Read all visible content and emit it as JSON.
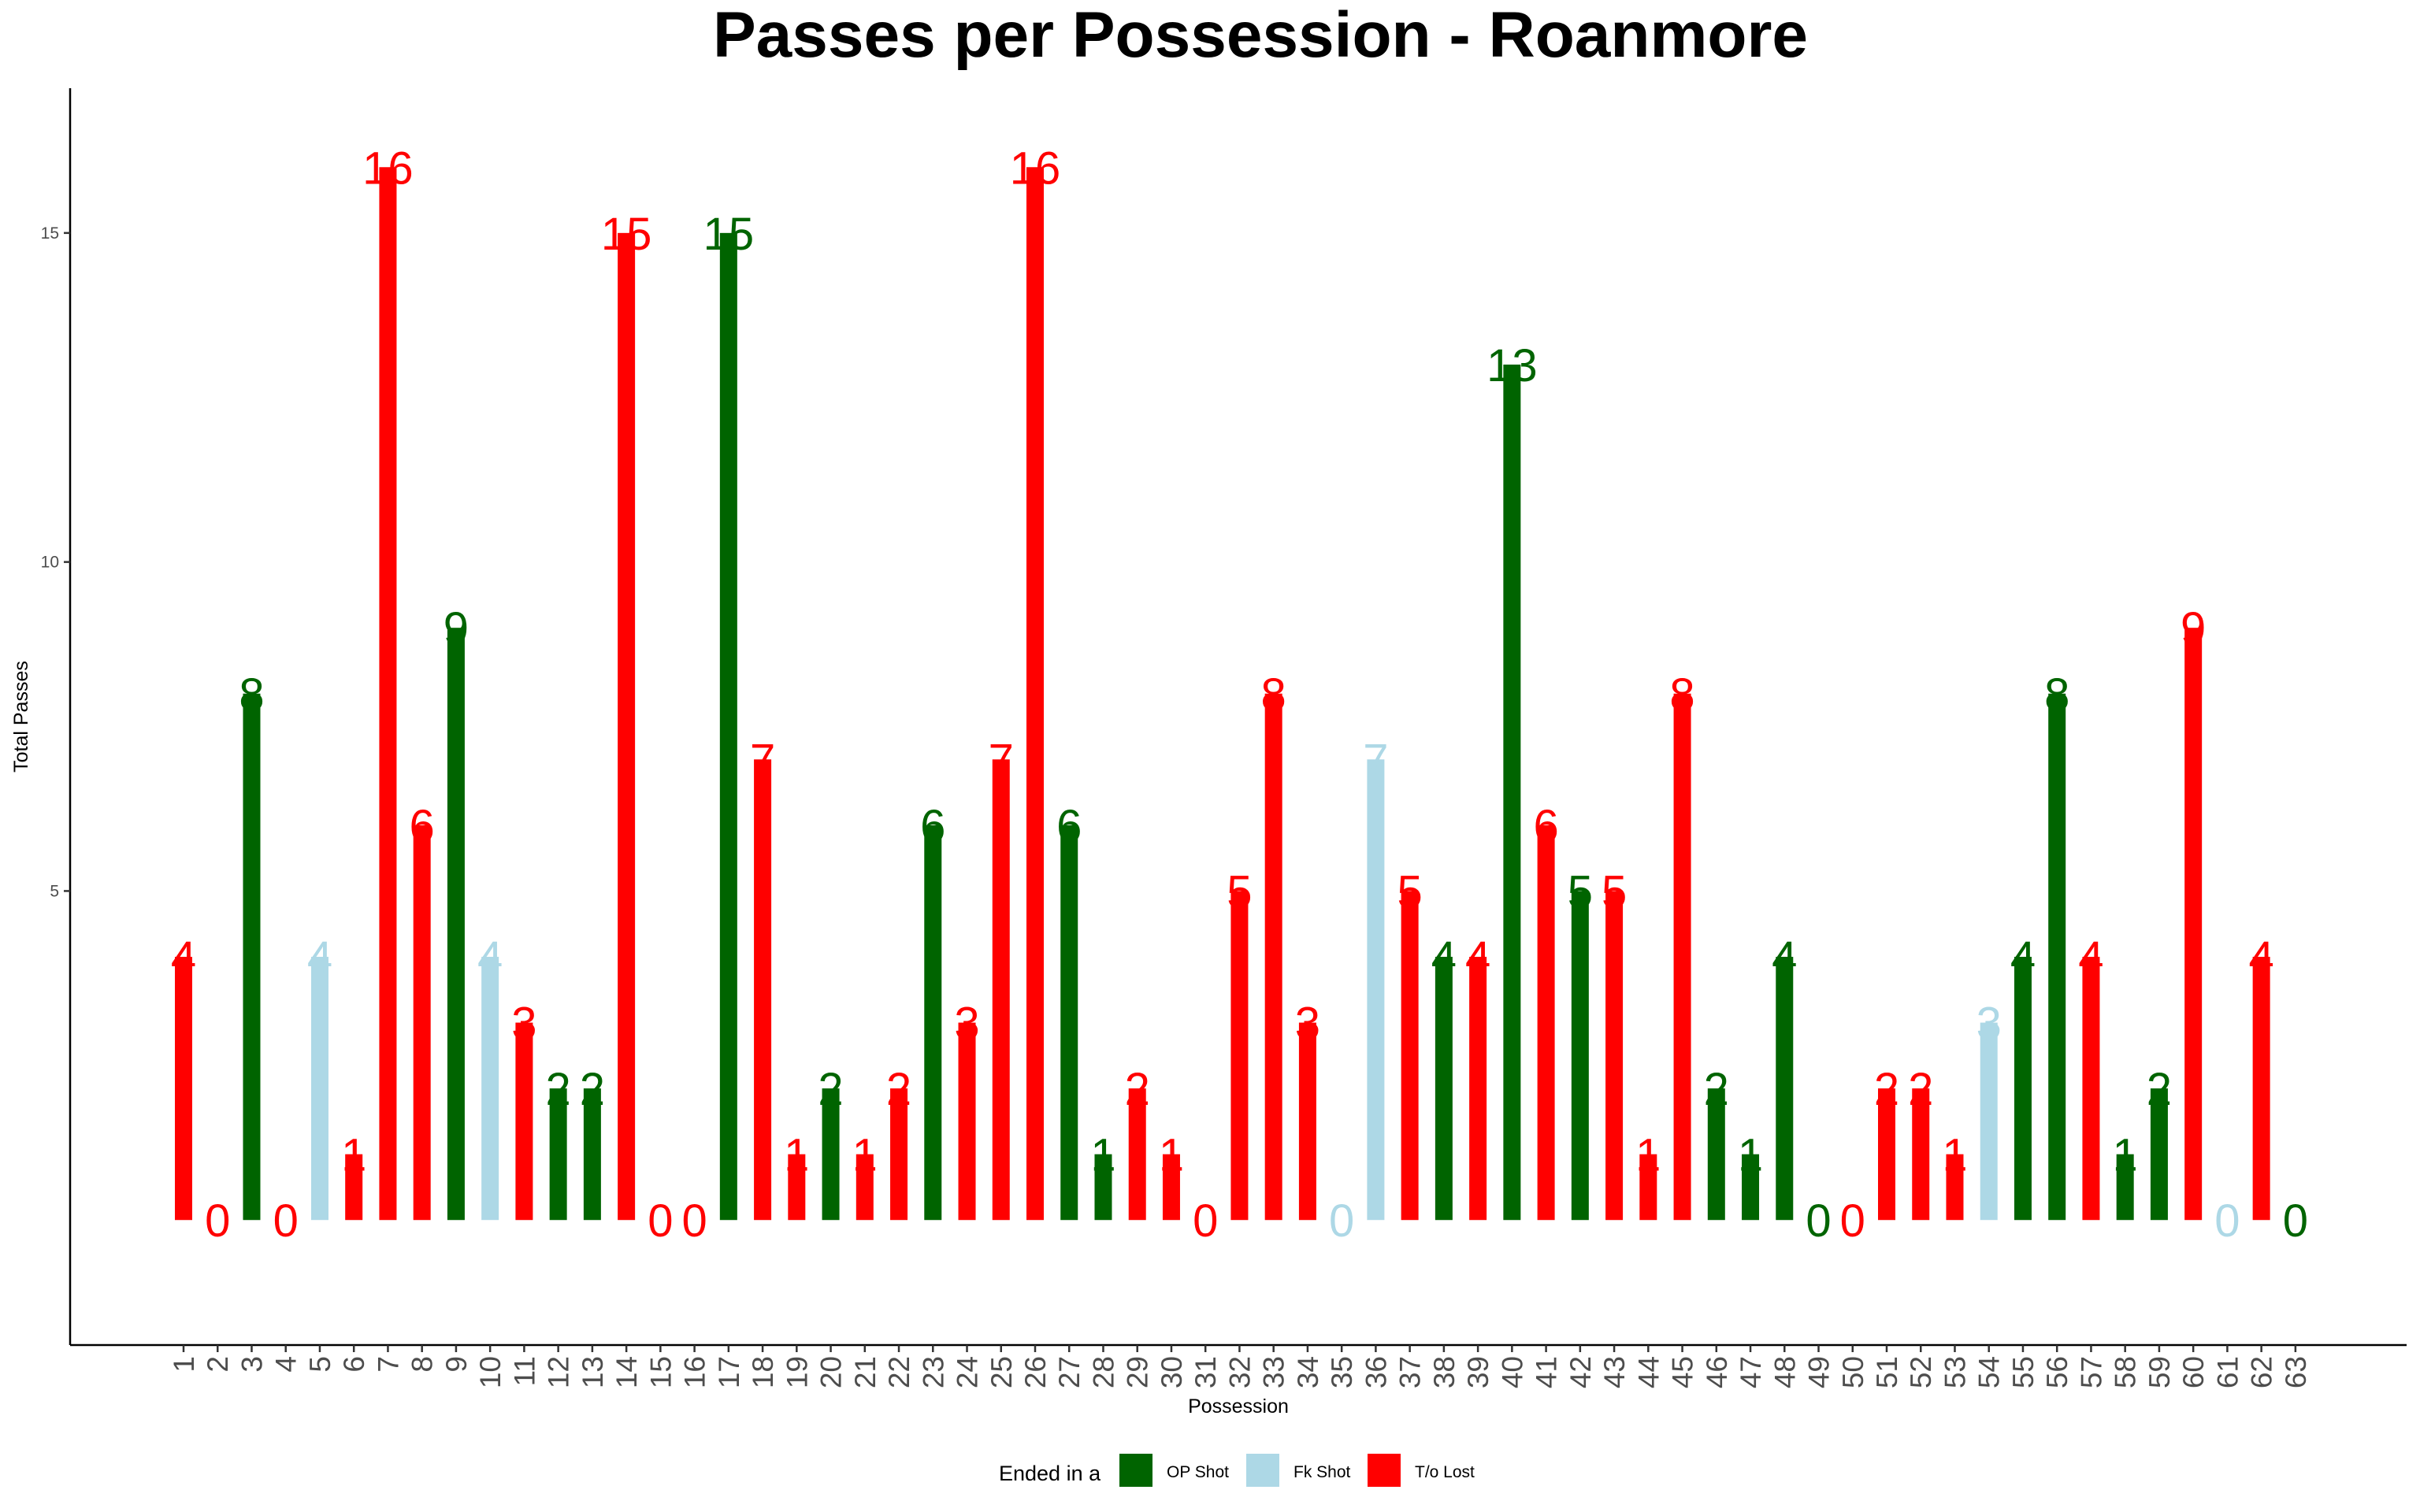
{
  "chart_data": {
    "type": "bar",
    "title": "Passes per Possession - Roanmore",
    "xlabel": "Possession",
    "ylabel": "Total Passes",
    "ylim": [
      -1.9,
      17.2
    ],
    "yticks": [
      5,
      10,
      15
    ],
    "grid": false,
    "legend": {
      "title": "Ended in a",
      "position": "bottom",
      "entries": [
        {
          "key": "OP",
          "label": "OP Shot",
          "color": "#006400"
        },
        {
          "key": "FK",
          "label": "Fk Shot",
          "color": "#ADD8E6"
        },
        {
          "key": "TO",
          "label": "T/o Lost",
          "color": "#FF0000"
        }
      ]
    },
    "categories": [
      "1",
      "2",
      "3",
      "4",
      "5",
      "6",
      "7",
      "8",
      "9",
      "10",
      "11",
      "12",
      "13",
      "14",
      "15",
      "16",
      "17",
      "18",
      "19",
      "20",
      "21",
      "22",
      "23",
      "24",
      "25",
      "26",
      "27",
      "28",
      "29",
      "30",
      "31",
      "32",
      "33",
      "34",
      "35",
      "36",
      "37",
      "38",
      "39",
      "40",
      "41",
      "42",
      "43",
      "44",
      "45",
      "46",
      "47",
      "48",
      "49",
      "50",
      "51",
      "52",
      "53",
      "54",
      "55",
      "56",
      "57",
      "58",
      "59",
      "60",
      "61",
      "62",
      "63"
    ],
    "values": [
      4,
      0,
      8,
      0,
      4,
      1,
      16,
      6,
      9,
      4,
      3,
      2,
      2,
      15,
      0,
      0,
      15,
      7,
      1,
      2,
      1,
      2,
      6,
      3,
      7,
      16,
      6,
      1,
      2,
      1,
      0,
      5,
      8,
      3,
      0,
      7,
      5,
      4,
      4,
      13,
      6,
      5,
      5,
      1,
      8,
      2,
      1,
      4,
      0,
      0,
      2,
      2,
      1,
      3,
      4,
      8,
      4,
      1,
      2,
      9,
      0,
      4,
      0
    ],
    "outcomes": [
      "TO",
      "TO",
      "OP",
      "TO",
      "FK",
      "TO",
      "TO",
      "TO",
      "OP",
      "FK",
      "TO",
      "OP",
      "OP",
      "TO",
      "TO",
      "TO",
      "OP",
      "TO",
      "TO",
      "OP",
      "TO",
      "TO",
      "OP",
      "TO",
      "TO",
      "TO",
      "OP",
      "OP",
      "TO",
      "TO",
      "TO",
      "TO",
      "TO",
      "TO",
      "FK",
      "FK",
      "TO",
      "OP",
      "TO",
      "OP",
      "TO",
      "OP",
      "TO",
      "TO",
      "TO",
      "OP",
      "OP",
      "OP",
      "OP",
      "TO",
      "TO",
      "TO",
      "TO",
      "FK",
      "OP",
      "OP",
      "TO",
      "OP",
      "OP",
      "TO",
      "FK",
      "TO",
      "OP"
    ]
  }
}
